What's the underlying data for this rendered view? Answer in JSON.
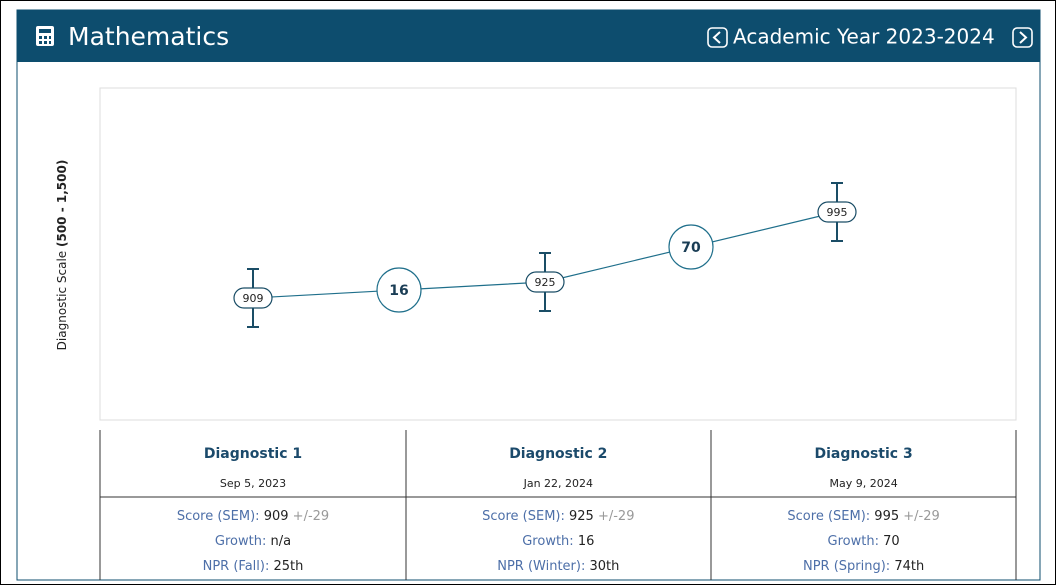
{
  "header": {
    "title": "Mathematics",
    "year": "Academic Year 2023-2024"
  },
  "chart_data": {
    "type": "line",
    "ylabel": "Diagnostic Scale",
    "ylabel_range": "(500 - 1,500)",
    "categories": [
      "Diagnostic 1",
      "Diagnostic 2",
      "Diagnostic 3"
    ],
    "series": [
      {
        "color": "#1f6f8b",
        "values": [
          909,
          925,
          995
        ],
        "errors": [
          29,
          29,
          29
        ],
        "error_labels": [
          "+/-29",
          "+/-29",
          "+/-29"
        ]
      }
    ],
    "growth": [
      16,
      70
    ],
    "ylim": [
      787,
      1119
    ]
  },
  "table": {
    "dates": [
      "Sep 5, 2023",
      "Jan 22, 2024",
      "May 9, 2024"
    ],
    "score_label": "Score (SEM):",
    "growth_label": "Growth:",
    "first_growth": "n/a",
    "npr_labels": [
      "NPR (Fall):",
      "NPR (Winter):",
      "NPR (Spring):"
    ],
    "npr": [
      "25th",
      "30th",
      "74th"
    ]
  }
}
